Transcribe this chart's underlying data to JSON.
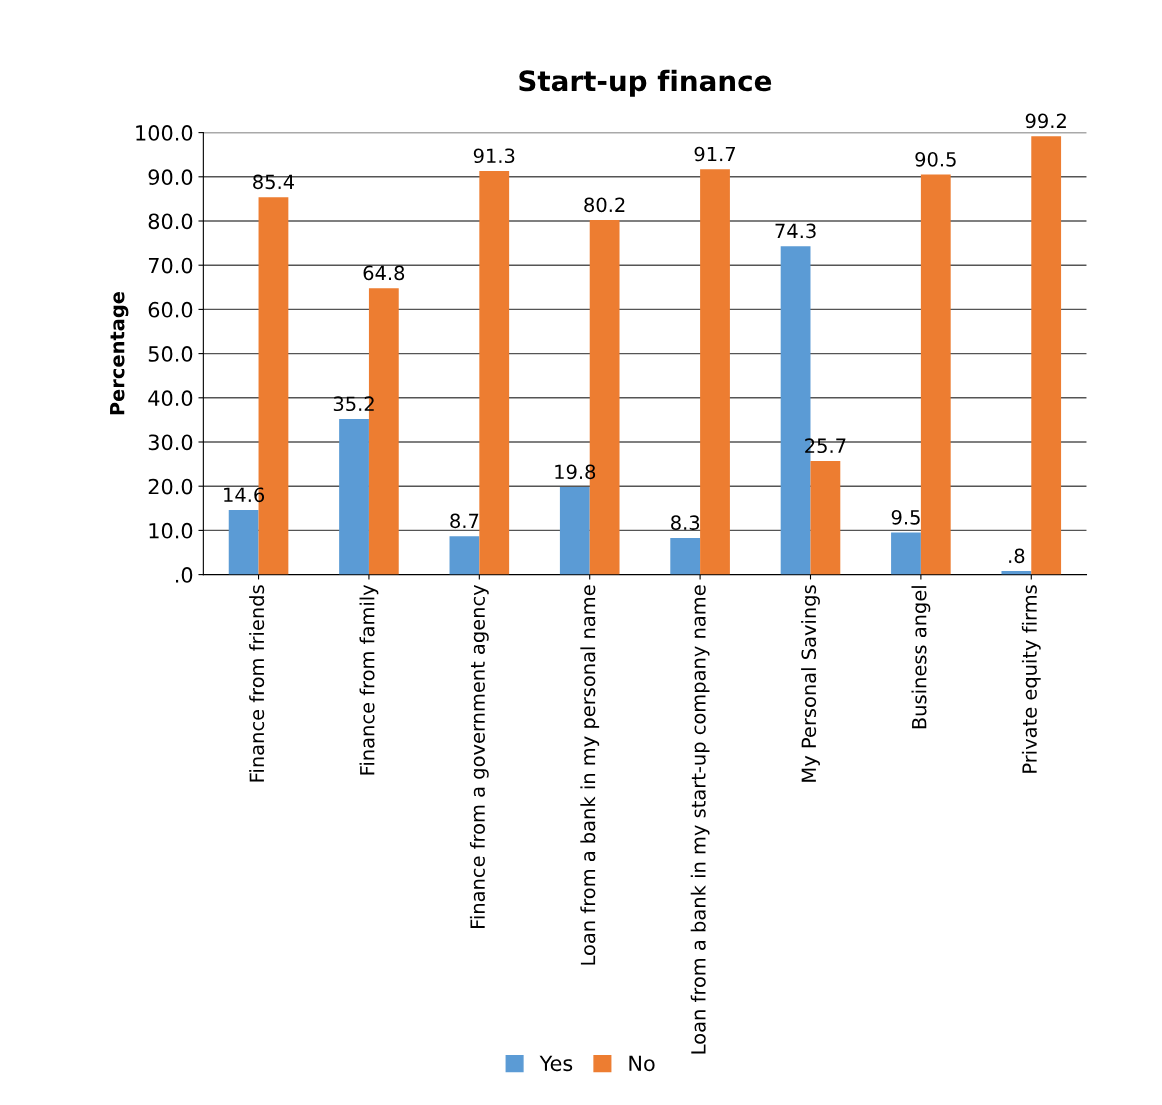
{
  "chart_data": {
    "type": "bar",
    "title": "Start-up finance",
    "ylabel": "Percentage",
    "categories": [
      "Finance from friends",
      "Finance from family",
      "Finance from a government agency",
      "Loan from a bank in my personal name",
      "Loan from a bank in my start-up company name",
      "My Personal Savings",
      "Business angel",
      "Private equity firms"
    ],
    "series": [
      {
        "name": "Yes",
        "color": "#5b9bd5",
        "values": [
          14.6,
          35.2,
          8.7,
          19.8,
          8.3,
          74.3,
          9.5,
          0.8
        ],
        "value_labels": [
          "14.6",
          "35.2",
          "8.7",
          "19.8",
          "8.3",
          "74.3",
          "9.5",
          ".8"
        ]
      },
      {
        "name": "No",
        "color": "#ed7d31",
        "values": [
          85.4,
          64.8,
          91.3,
          80.2,
          91.7,
          25.7,
          90.5,
          99.2
        ],
        "value_labels": [
          "85.4",
          "64.8",
          "91.3",
          "80.2",
          "91.7",
          "25.7",
          "90.5",
          "99.2"
        ]
      }
    ],
    "ylim": [
      0,
      100
    ],
    "yticks": [
      {
        "value": 0,
        "label": ".0"
      },
      {
        "value": 10,
        "label": "10.0"
      },
      {
        "value": 20,
        "label": "20.0"
      },
      {
        "value": 30,
        "label": "30.0"
      },
      {
        "value": 40,
        "label": "40.0"
      },
      {
        "value": 50,
        "label": "50.0"
      },
      {
        "value": 60,
        "label": "60.0"
      },
      {
        "value": 70,
        "label": "70.0"
      },
      {
        "value": 80,
        "label": "80.0"
      },
      {
        "value": 90,
        "label": "90.0"
      },
      {
        "value": 100,
        "label": "100.0"
      }
    ],
    "grid": "y",
    "legend": "bottom"
  }
}
